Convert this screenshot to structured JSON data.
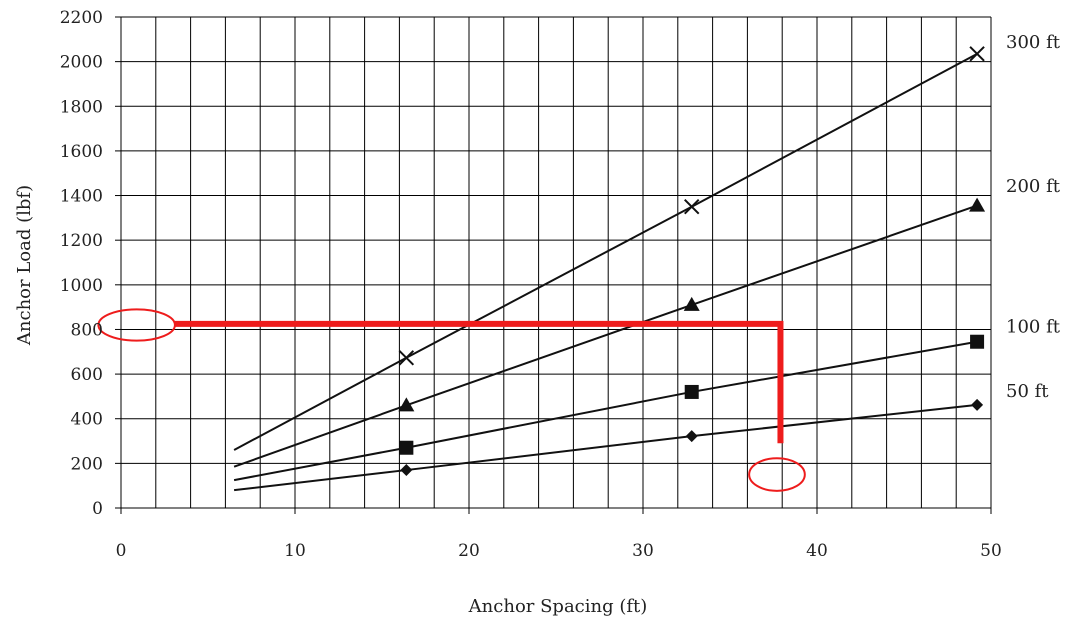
{
  "chart_data": {
    "type": "line",
    "title": "",
    "xlabel": "Anchor Spacing (ft)",
    "ylabel": "Anchor Load (lbf)",
    "xlim": [
      0,
      50
    ],
    "ylim": [
      0,
      2200
    ],
    "xticks": [
      "0",
      "10",
      "20",
      "30",
      "40",
      "50"
    ],
    "yticks": [
      "0",
      "200",
      "400",
      "600",
      "800",
      "1000",
      "1200",
      "1400",
      "1600",
      "1800",
      "2000",
      "2200"
    ],
    "grid": true,
    "minor_x_grid_step": 2,
    "series": [
      {
        "name": "300 ft",
        "marker": "x",
        "x": [
          6.5,
          16.4,
          32.8,
          49.2
        ],
        "y": [
          260,
          673,
          1350,
          2035
        ],
        "marker_x": [
          16.4,
          32.8,
          49.2
        ],
        "marker_y": [
          673,
          1350,
          2035
        ]
      },
      {
        "name": "200 ft",
        "marker": "triangle",
        "x": [
          6.5,
          16.4,
          32.8,
          49.2
        ],
        "y": [
          185,
          460,
          910,
          1355
        ],
        "marker_x": [
          16.4,
          32.8,
          49.2
        ],
        "marker_y": [
          460,
          910,
          1355
        ]
      },
      {
        "name": "100 ft",
        "marker": "square",
        "x": [
          6.5,
          16.4,
          32.8,
          49.2
        ],
        "y": [
          125,
          270,
          520,
          745
        ],
        "marker_x": [
          16.4,
          32.8,
          49.2
        ],
        "marker_y": [
          270,
          520,
          745
        ]
      },
      {
        "name": "50 ft",
        "marker": "diamond",
        "x": [
          6.5,
          16.4,
          32.8,
          49.2
        ],
        "y": [
          80,
          170,
          322,
          462
        ],
        "marker_x": [
          16.4,
          32.8,
          49.2
        ],
        "marker_y": [
          170,
          322,
          462
        ]
      }
    ],
    "annotations": {
      "color": "#ee1c1c",
      "guide_line": {
        "horizontal_y": 825,
        "from_x": 3.1,
        "to_x": 37.9,
        "vertical_to_y": 290
      },
      "circles": [
        {
          "cx": 0.9,
          "cy": 820,
          "rx": 2.2,
          "ry": 70
        },
        {
          "cx": 37.7,
          "cy": 150,
          "rx": 1.6,
          "ry": 73
        }
      ]
    },
    "colors": {
      "line": "#111111",
      "grid": "#000000",
      "text": "#222222"
    }
  }
}
